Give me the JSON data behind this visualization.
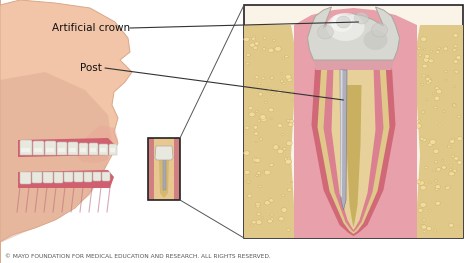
{
  "bg_color": "#ffffff",
  "face_fill": "#f2c4a8",
  "face_edge": "#d9a888",
  "face_shadow": "#e8a888",
  "gum_pink": "#d4748a",
  "gum_light": "#e8909a",
  "bone_tan": "#e0c888",
  "bone_light": "#f0dca0",
  "tooth_white": "#e8e8de",
  "tooth_highlight": "#f8f8f5",
  "crown_base": "#d8d8d0",
  "post_gray": "#a8a8b4",
  "post_light": "#d0d0d8",
  "root_fill": "#c8b87a",
  "pdl_pink": "#d06878",
  "box_line": "#222222",
  "label_color": "#111111",
  "arrow_color": "#333333",
  "copyright_color": "#555555",
  "copyright_text": "© MAYO FOUNDATION FOR MEDICAL EDUCATION AND RESEARCH. ALL RIGHTS RESERVED.",
  "label_crown": "Artificial crown",
  "label_post": "Post",
  "fig_width": 4.68,
  "fig_height": 2.63,
  "dpi": 100
}
